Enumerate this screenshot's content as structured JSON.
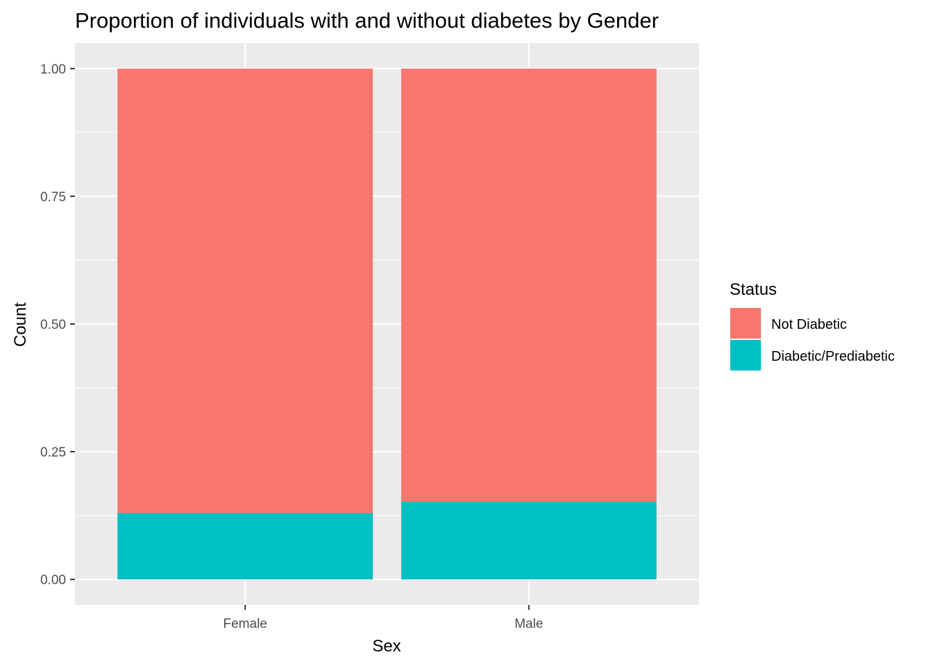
{
  "chart_data": {
    "type": "bar",
    "stacked": true,
    "title": "Proportion of individuals with and without diabetes by Gender",
    "xlabel": "Sex",
    "ylabel": "Count",
    "categories": [
      "Female",
      "Male"
    ],
    "series": [
      {
        "name": "Not Diabetic",
        "color": "#F8766D",
        "values": [
          0.87,
          0.848
        ]
      },
      {
        "name": "Diabetic/Prediabetic",
        "color": "#00BFC4",
        "values": [
          0.13,
          0.152
        ]
      }
    ],
    "stack_order": [
      "Diabetic/Prediabetic",
      "Not Diabetic"
    ],
    "ylim": [
      -0.05,
      1.05
    ],
    "yticks": [
      0.0,
      0.25,
      0.5,
      0.75,
      1.0
    ],
    "ytick_labels": [
      "0.00",
      "0.25",
      "0.50",
      "0.75",
      "1.00"
    ],
    "legend": {
      "title": "Status",
      "position": "right"
    },
    "grid": true
  },
  "colors": {
    "panel_background": "#EBEBEB",
    "grid_major": "#FFFFFF",
    "tick_text": "#4D4D4D",
    "tick_mark": "#333333"
  }
}
